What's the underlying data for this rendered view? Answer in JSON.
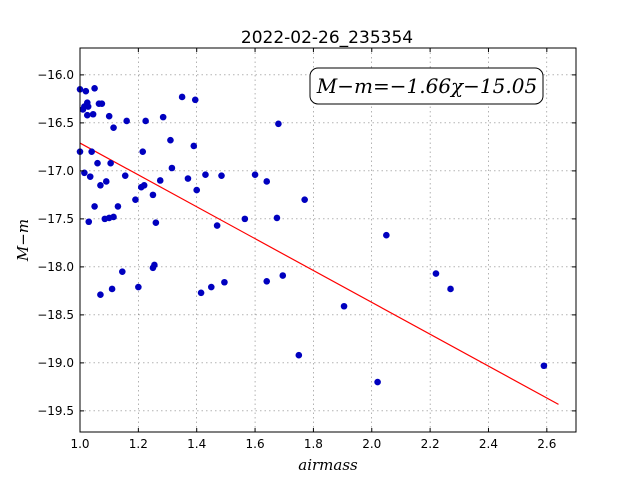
{
  "chart_data": {
    "type": "scatter",
    "title": "2022-02-26_235354",
    "xlabel": "airmass",
    "ylabel": "M−m",
    "xlim": [
      1.0,
      2.7
    ],
    "ylim": [
      -19.72,
      -15.72
    ],
    "xticks": [
      "1.0",
      "1.2",
      "1.4",
      "1.6",
      "1.8",
      "2.0",
      "2.2",
      "2.4",
      "2.6"
    ],
    "yticks": [
      "−16.0",
      "−16.5",
      "−17.0",
      "−17.5",
      "−18.0",
      "−18.5",
      "−19.0",
      "−19.5"
    ],
    "grid": true,
    "annotation": "M−m=−1.66χ−15.05",
    "colors": {
      "points": "#0000bf",
      "fit": "#ff0000"
    },
    "fit_line": {
      "slope": -1.66,
      "intercept": -15.05,
      "x": [
        1.0,
        2.64
      ]
    },
    "points": [
      [
        1.0,
        -16.15
      ],
      [
        1.0,
        -16.8
      ],
      [
        1.01,
        -16.36
      ],
      [
        1.015,
        -16.33
      ],
      [
        1.015,
        -17.02
      ],
      [
        1.02,
        -16.17
      ],
      [
        1.025,
        -16.29
      ],
      [
        1.025,
        -16.42
      ],
      [
        1.028,
        -16.33
      ],
      [
        1.03,
        -17.53
      ],
      [
        1.035,
        -17.06
      ],
      [
        1.04,
        -16.8
      ],
      [
        1.045,
        -16.41
      ],
      [
        1.05,
        -16.14
      ],
      [
        1.05,
        -17.37
      ],
      [
        1.06,
        -16.92
      ],
      [
        1.065,
        -16.3
      ],
      [
        1.07,
        -17.15
      ],
      [
        1.07,
        -18.29
      ],
      [
        1.075,
        -16.3
      ],
      [
        1.085,
        -17.5
      ],
      [
        1.09,
        -17.11
      ],
      [
        1.1,
        -16.43
      ],
      [
        1.1,
        -17.49
      ],
      [
        1.105,
        -16.92
      ],
      [
        1.11,
        -18.23
      ],
      [
        1.115,
        -16.55
      ],
      [
        1.115,
        -17.48
      ],
      [
        1.13,
        -17.37
      ],
      [
        1.145,
        -18.05
      ],
      [
        1.155,
        -17.05
      ],
      [
        1.16,
        -16.48
      ],
      [
        1.19,
        -17.3
      ],
      [
        1.2,
        -18.21
      ],
      [
        1.21,
        -17.17
      ],
      [
        1.215,
        -16.8
      ],
      [
        1.22,
        -17.15
      ],
      [
        1.225,
        -16.48
      ],
      [
        1.25,
        -17.25
      ],
      [
        1.25,
        -18.01
      ],
      [
        1.255,
        -17.98
      ],
      [
        1.26,
        -17.54
      ],
      [
        1.275,
        -17.1
      ],
      [
        1.285,
        -16.44
      ],
      [
        1.31,
        -16.68
      ],
      [
        1.315,
        -16.97
      ],
      [
        1.35,
        -16.23
      ],
      [
        1.37,
        -17.08
      ],
      [
        1.39,
        -16.74
      ],
      [
        1.395,
        -16.26
      ],
      [
        1.4,
        -17.2
      ],
      [
        1.415,
        -18.27
      ],
      [
        1.43,
        -17.04
      ],
      [
        1.45,
        -18.21
      ],
      [
        1.47,
        -17.57
      ],
      [
        1.485,
        -17.05
      ],
      [
        1.495,
        -18.16
      ],
      [
        1.565,
        -17.5
      ],
      [
        1.6,
        -17.04
      ],
      [
        1.64,
        -17.11
      ],
      [
        1.64,
        -18.15
      ],
      [
        1.675,
        -17.49
      ],
      [
        1.68,
        -16.51
      ],
      [
        1.695,
        -18.09
      ],
      [
        1.75,
        -18.92
      ],
      [
        1.77,
        -17.3
      ],
      [
        1.905,
        -18.41
      ],
      [
        2.02,
        -19.2
      ],
      [
        2.05,
        -17.67
      ],
      [
        2.22,
        -18.07
      ],
      [
        2.27,
        -18.23
      ],
      [
        2.59,
        -19.03
      ]
    ]
  }
}
